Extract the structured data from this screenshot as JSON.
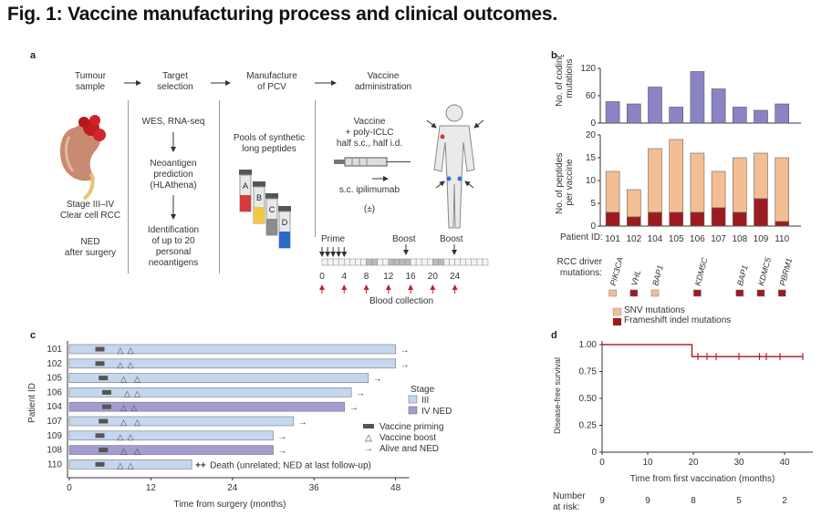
{
  "figure_title": "Fig. 1: Vaccine manufacturing process and clinical outcomes.",
  "panel_labels": {
    "a": "a",
    "b": "b",
    "c": "c",
    "d": "d"
  },
  "panel_a": {
    "steps": [
      "Tumour\nsample",
      "Target\nselection",
      "Manufacture\nof PCV",
      "Vaccine\nadministration"
    ],
    "tumour_text_1": "Stage III–IV\nClear cell RCC",
    "tumour_text_2": "NED\nafter surgery",
    "target_1": "WES, RNA-seq",
    "target_2": "Neoantigen\nprediction\n(HLAthena)",
    "target_3": "Identification\nof up to 20\npersonal\nneoantigens",
    "pools": "Pools of synthetic\nlong peptides",
    "vials": [
      "A",
      "B",
      "C",
      "D"
    ],
    "vaccine_label": "Vaccine\n+ poly-ICLC\nhalf s.c., half i.d.",
    "ipi_label": "s.c. ipilimumab",
    "ipi_pm": "(±)",
    "prime": "Prime",
    "boost1": "Boost",
    "boost2": "Boost",
    "timeline_ticks": [
      "0",
      "4",
      "8",
      "12",
      "16",
      "20",
      "24"
    ],
    "blood": "Blood collection"
  },
  "chart_data": [
    {
      "id": "b-top",
      "type": "bar",
      "categories": [
        "101",
        "102",
        "104",
        "105",
        "106",
        "107",
        "108",
        "109",
        "110"
      ],
      "values": [
        47,
        42,
        79,
        35,
        113,
        75,
        35,
        28,
        42
      ],
      "ylabel": "No. of coding mutations",
      "ylim": [
        0,
        120
      ],
      "yticks": [
        "0",
        "60",
        "120"
      ]
    },
    {
      "id": "b-bottom",
      "type": "bar",
      "categories": [
        "101",
        "102",
        "104",
        "105",
        "106",
        "107",
        "108",
        "109",
        "110"
      ],
      "series": [
        {
          "name": "Frameshift indel mutations",
          "values": [
            3,
            2,
            3,
            3,
            3,
            4,
            3,
            6,
            1
          ]
        },
        {
          "name": "SNV mutations",
          "values": [
            9,
            6,
            14,
            16,
            13,
            8,
            12,
            10,
            14
          ]
        }
      ],
      "totals": [
        12,
        8,
        17,
        19,
        16,
        12,
        15,
        16,
        15
      ],
      "ylabel": "No. of peptides per vaccine",
      "ylim": [
        0,
        20
      ],
      "yticks": [
        "0",
        "5",
        "10",
        "15",
        "20"
      ]
    },
    {
      "id": "c",
      "type": "bar",
      "title": "",
      "xlabel": "Time from surgery (months)",
      "ylabel": "Patient ID",
      "xlim": [
        0,
        52
      ],
      "xticks": [
        "0",
        "12",
        "24",
        "36",
        "48"
      ],
      "categories": [
        "101",
        "102",
        "105",
        "106",
        "104",
        "107",
        "109",
        "108",
        "110"
      ],
      "values": [
        48,
        48,
        44,
        41.5,
        40.5,
        33,
        30,
        30,
        18
      ],
      "stage": [
        "III",
        "III",
        "III",
        "III",
        "IV NED",
        "III",
        "III",
        "IV NED",
        "III"
      ],
      "prime_month": [
        4.5,
        4.5,
        5,
        5.5,
        5.5,
        5,
        4.5,
        5,
        4.5
      ],
      "boosts": [
        [
          7.5,
          9
        ],
        [
          7.5,
          9
        ],
        [
          8,
          10
        ],
        [
          8.5,
          10
        ],
        [
          8,
          9.5
        ],
        [
          8,
          10
        ],
        [
          7.5,
          9
        ],
        [
          8,
          10
        ],
        [
          7.5,
          9
        ]
      ],
      "status": [
        "alive",
        "alive",
        "alive",
        "alive",
        "alive",
        "alive",
        "alive",
        "alive",
        "death"
      ]
    },
    {
      "id": "d",
      "type": "line",
      "xlabel": "Time from first vaccination (months)",
      "ylabel": "Disease-free survival",
      "xlim": [
        0,
        45
      ],
      "ylim": [
        0,
        1
      ],
      "xticks": [
        "0",
        "10",
        "20",
        "30",
        "40"
      ],
      "yticks": [
        "0",
        "0.25",
        "0.50",
        "0.75",
        "1.00"
      ],
      "steps": [
        [
          0,
          1.0
        ],
        [
          19.7,
          1.0
        ],
        [
          19.7,
          0.889
        ],
        [
          44,
          0.889
        ]
      ],
      "censors": [
        21,
        23,
        25,
        30,
        34.5,
        36,
        39,
        44
      ]
    }
  ],
  "panel_b": {
    "patient_label": "Patient ID:",
    "driver_label": "RCC driver\nmutations:",
    "genes": [
      {
        "name": "PIK3CA",
        "patient": 0,
        "type": "snv"
      },
      {
        "name": "VHL",
        "patient": 1,
        "type": "fs"
      },
      {
        "name": "BAP1",
        "patient": 2,
        "type": "snv"
      },
      {
        "name": "KDM5C",
        "patient": 4,
        "type": "fs"
      },
      {
        "name": "BAP1",
        "patient": 6,
        "type": "fs"
      },
      {
        "name": "KDMC5",
        "patient": 7,
        "type": "fs"
      },
      {
        "name": "PBRM1",
        "patient": 8,
        "type": "fs"
      }
    ],
    "legend_snv": "SNV mutations",
    "legend_fs": "Frameshift indel mutations"
  },
  "panel_c": {
    "stage_title": "Stage",
    "stage_iii": "III",
    "stage_iv": "IV NED",
    "leg_prime": "Vaccine priming",
    "leg_boost": "Vaccine boost",
    "leg_alive": "Alive and NED",
    "death_note": "Death (unrelated; NED at last follow-up)"
  },
  "panel_d": {
    "at_risk_label": "Number\nat risk:",
    "at_risk": [
      "9",
      "9",
      "8",
      "5",
      "2"
    ]
  },
  "colors": {
    "purple": "#8a84c4",
    "peach": "#f3be94",
    "darkred": "#9c1b20",
    "lightblue": "#c5d7ee",
    "lavender": "#a49bd0",
    "curve": "#b2232a"
  }
}
